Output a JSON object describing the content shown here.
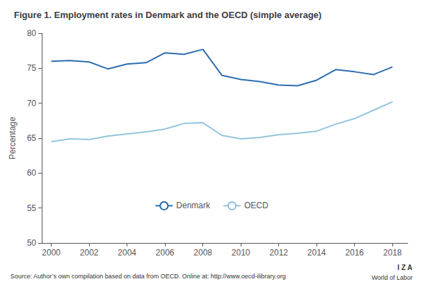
{
  "chart_data": {
    "type": "line",
    "title": "Figure 1. Employment rates in Denmark and the OECD (simple average)",
    "y_label": "Percentage",
    "annotations": [
      "Source: Author’s own compilation based on data from OECD. Online at: http://www.oecd-ilibrary.org",
      "I Z A",
      "World of Labor"
    ],
    "x": [
      2000,
      2001,
      2002,
      2003,
      2004,
      2005,
      2006,
      2007,
      2008,
      2009,
      2010,
      2011,
      2012,
      2013,
      2014,
      2015,
      2016,
      2017,
      2018
    ],
    "series": [
      {
        "name": "Denmark",
        "color": "#2B6CB0",
        "values": [
          76.0,
          76.1,
          75.9,
          74.9,
          75.6,
          75.8,
          77.2,
          77.0,
          77.7,
          74.0,
          73.4,
          73.1,
          72.6,
          72.5,
          73.3,
          74.8,
          74.5,
          74.1,
          75.2
        ]
      },
      {
        "name": "OECD",
        "color": "#93C4DE",
        "values": [
          64.5,
          64.9,
          64.8,
          65.3,
          65.6,
          65.9,
          66.3,
          67.1,
          67.2,
          65.4,
          64.9,
          65.1,
          65.5,
          65.7,
          66.0,
          67.0,
          67.8,
          69.0,
          70.2
        ]
      }
    ],
    "xlim": [
      1999.5,
      2018.8
    ],
    "xticks": [
      2000,
      2002,
      2004,
      2006,
      2008,
      2010,
      2012,
      2014,
      2016,
      2018
    ],
    "ylim": [
      50,
      80
    ],
    "yticks": [
      50,
      55,
      60,
      65,
      70,
      75,
      80
    ],
    "grid": false,
    "legend": "lower center"
  }
}
